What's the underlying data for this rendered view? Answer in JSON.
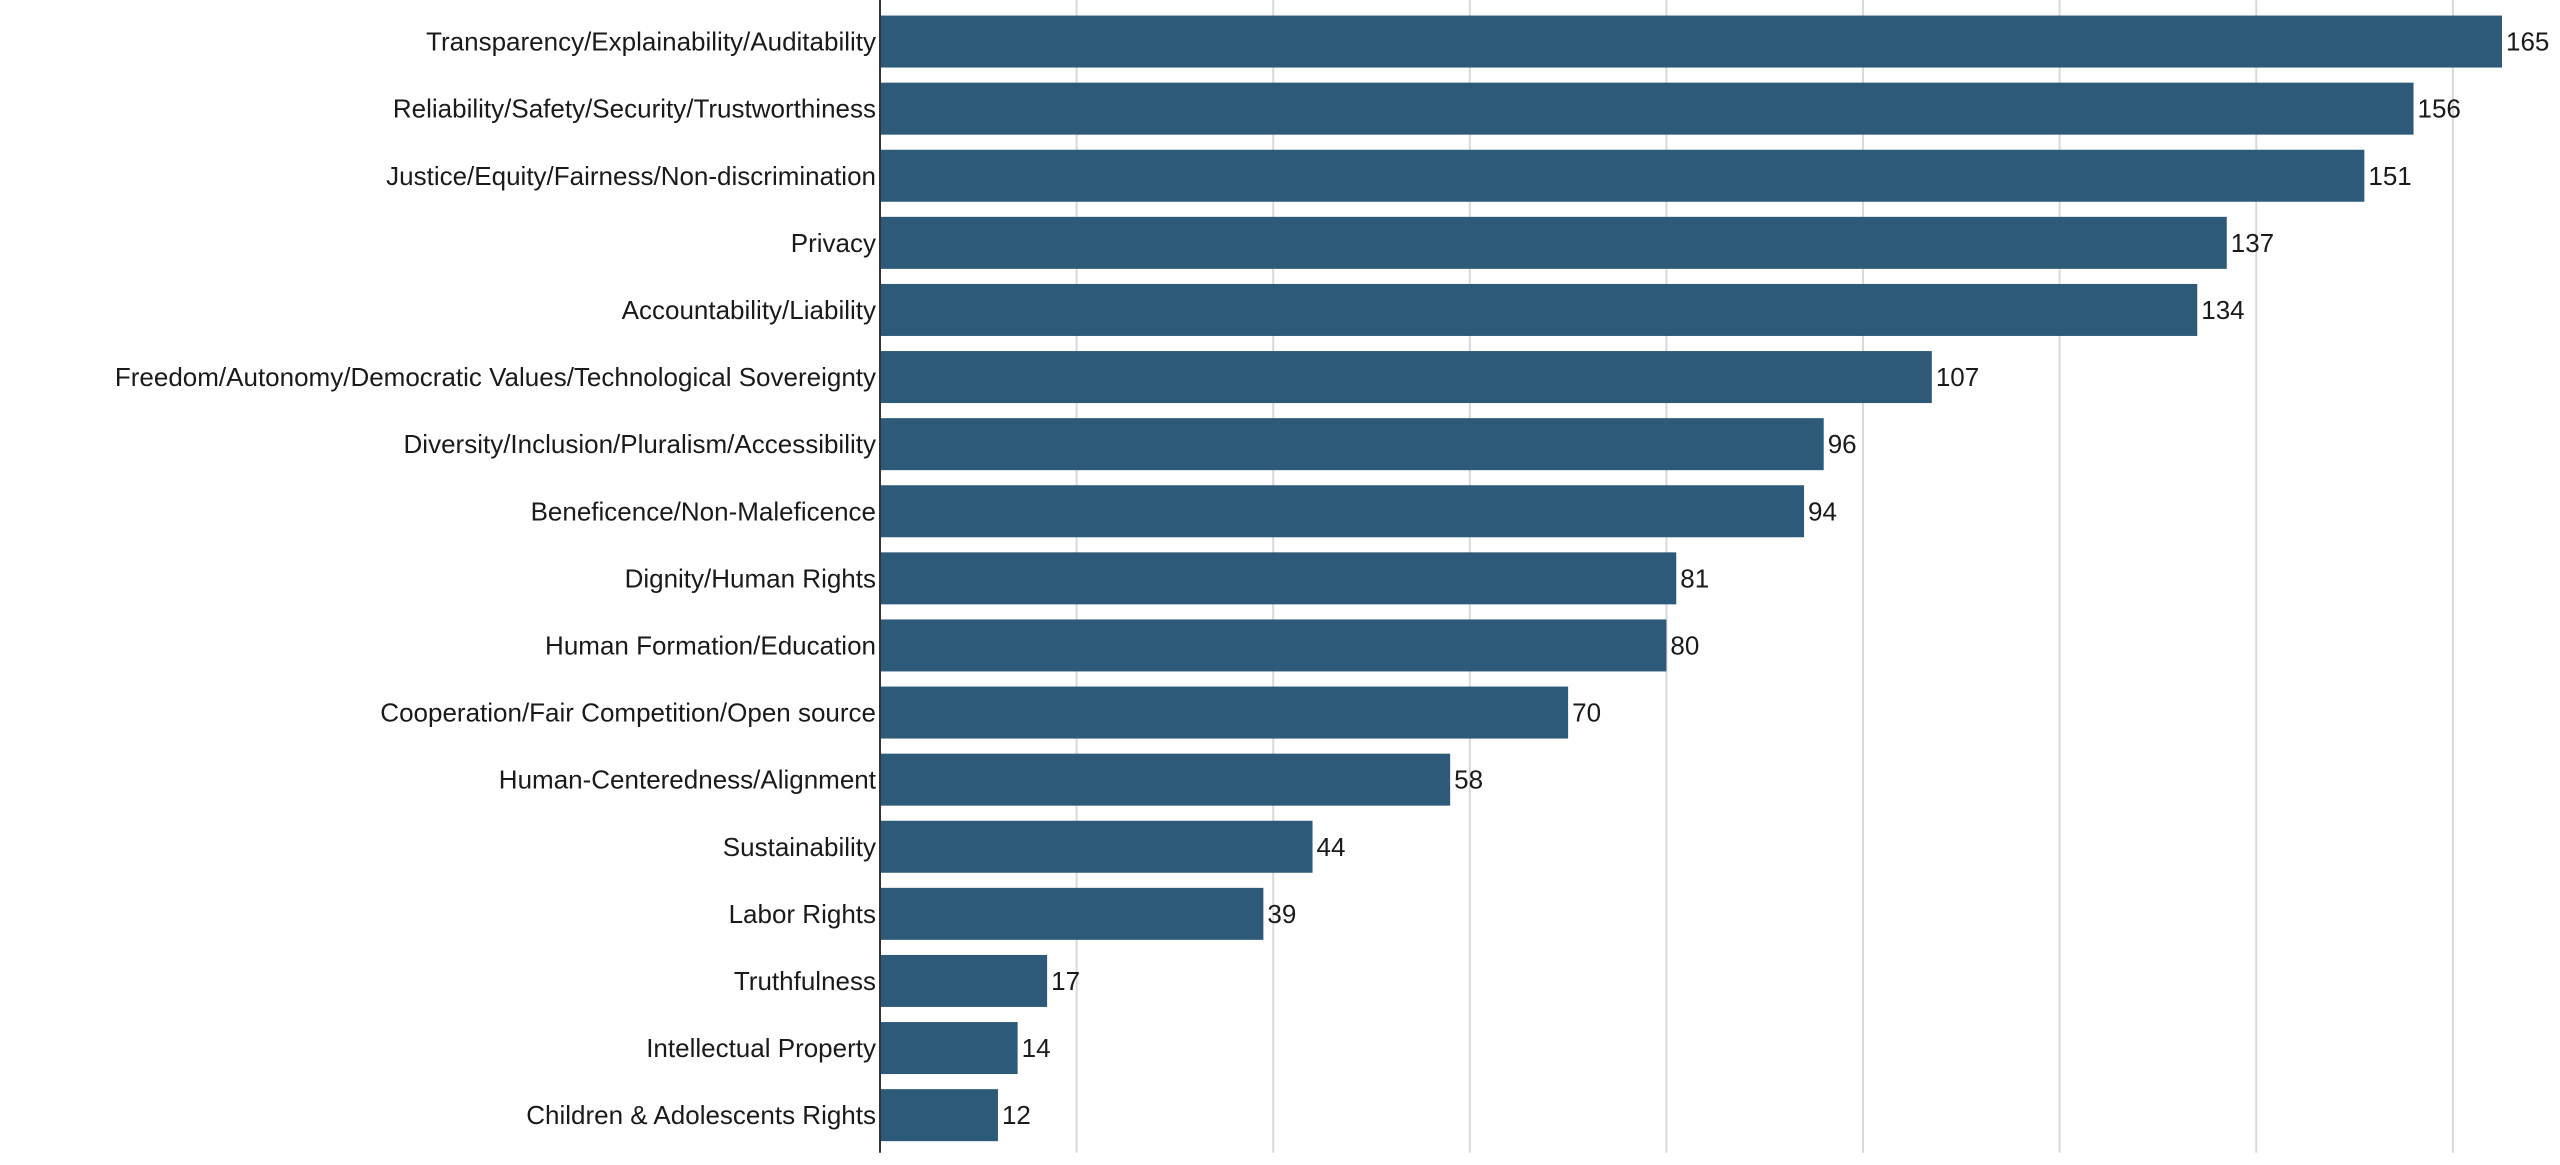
{
  "chart_data": {
    "type": "bar",
    "orientation": "horizontal",
    "categories": [
      "Transparency/Explainability/Auditability",
      "Reliability/Safety/Security/Trustworthiness",
      "Justice/Equity/Fairness/Non-discrimination",
      "Privacy",
      "Accountability/Liability",
      "Freedom/Autonomy/Democratic Values/Technological Sovereignty",
      "Diversity/Inclusion/Pluralism/Accessibility",
      "Beneficence/Non-Maleficence",
      "Dignity/Human Rights",
      "Human Formation/Education",
      "Cooperation/Fair Competition/Open source",
      "Human-Centeredness/Alignment",
      "Sustainability",
      "Labor Rights",
      "Truthfulness",
      "Intellectual Property",
      "Children & Adolescents Rights"
    ],
    "values": [
      165,
      156,
      151,
      137,
      134,
      107,
      96,
      94,
      81,
      80,
      70,
      58,
      44,
      39,
      17,
      14,
      12
    ],
    "xticks": [
      0,
      20,
      40,
      60,
      80,
      100,
      120,
      140,
      160
    ],
    "xlim": [
      0,
      165
    ],
    "grid": "vertical",
    "bar_color": "#2d5a79",
    "title": "",
    "xlabel": "",
    "ylabel": ""
  }
}
